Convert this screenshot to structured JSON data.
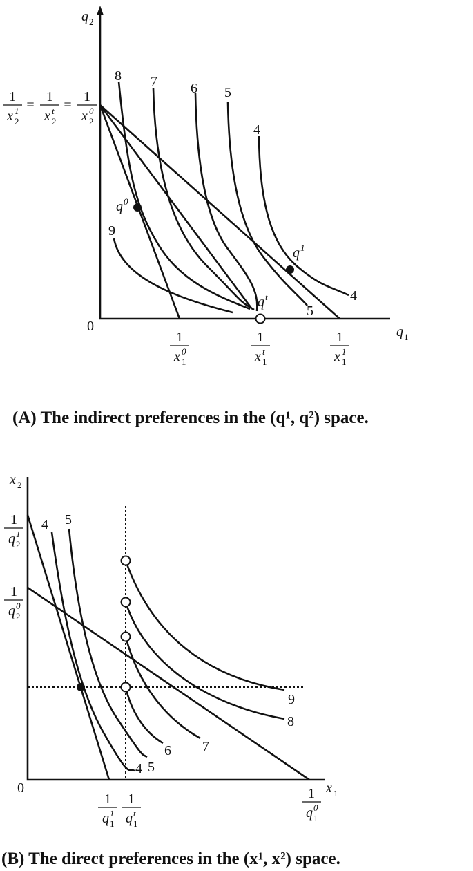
{
  "panel_a": {
    "y_axis": {
      "base": "q",
      "sub": "2"
    },
    "x_axis": {
      "base": "q",
      "sub": "1"
    },
    "origin": "0",
    "intercept_eq": [
      {
        "num": "1",
        "base": "x",
        "sub": "2",
        "sup": "1"
      },
      {
        "num": "1",
        "base": "x",
        "sub": "2",
        "sup": "t"
      },
      {
        "num": "1",
        "base": "x",
        "sub": "2",
        "sup": "0"
      }
    ],
    "equals": "=",
    "x_ticks": [
      {
        "num": "1",
        "base": "x",
        "sub": "1",
        "sup": "0"
      },
      {
        "num": "1",
        "base": "x",
        "sub": "1",
        "sup": "t"
      },
      {
        "num": "1",
        "base": "x",
        "sub": "1",
        "sup": "1"
      }
    ],
    "curve_labels": [
      "8",
      "7",
      "6",
      "5",
      "4",
      "9",
      "4",
      "5"
    ],
    "points": [
      {
        "base": "q",
        "sup": "0"
      },
      {
        "base": "q",
        "sup": "1"
      },
      {
        "base": "q",
        "sup": "t"
      }
    ],
    "caption": "(A) The indirect preferences in the (q¹, q²) space."
  },
  "panel_b": {
    "y_axis": {
      "base": "x",
      "sub": "2"
    },
    "x_axis": {
      "base": "x",
      "sub": "1"
    },
    "origin": "0",
    "y_ticks": [
      {
        "num": "1",
        "base": "q",
        "sub": "2",
        "sup": "1"
      },
      {
        "num": "1",
        "base": "q",
        "sub": "2",
        "sup": "0"
      }
    ],
    "x_ticks": [
      {
        "num": "1",
        "base": "q",
        "sub": "1",
        "sup": "1"
      },
      {
        "num": "1",
        "base": "q",
        "sub": "1",
        "sup": "t"
      },
      {
        "num": "1",
        "base": "q",
        "sub": "1",
        "sup": "0"
      }
    ],
    "curve_labels": [
      "4",
      "5",
      "4",
      "5",
      "6",
      "7",
      "8",
      "9"
    ],
    "caption": "(B) The direct preferences in the (x¹, x²) space."
  }
}
